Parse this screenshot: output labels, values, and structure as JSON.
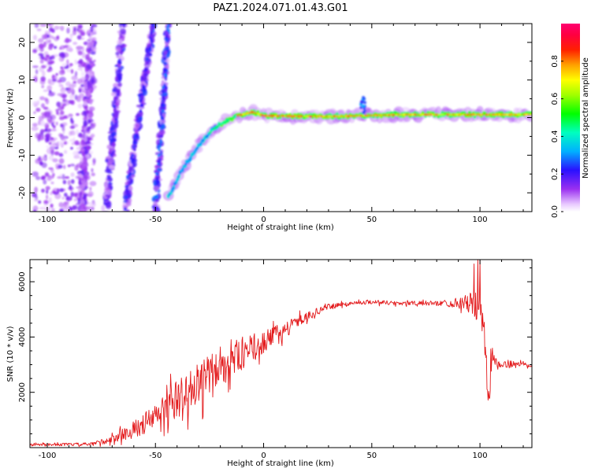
{
  "title": "PAZ1.2024.071.01.43.G01",
  "chart_data": [
    {
      "type": "heatmap",
      "name": "spectrogram",
      "xlabel": "Height of straight line (km)",
      "ylabel": "Frequency (Hz)",
      "xlim": [
        -108,
        124
      ],
      "ylim": [
        -25,
        25
      ],
      "xticks": [
        -100,
        -50,
        0,
        50,
        100
      ],
      "yticks": [
        -20,
        -10,
        0,
        10,
        20
      ],
      "grid": false,
      "colorbar": {
        "label": "Normalized spectral amplitude",
        "range": [
          0.0,
          1.0
        ],
        "ticks": [
          0.0,
          0.2,
          0.4,
          0.6,
          0.8
        ],
        "colormap": "gist_rainbow_r"
      },
      "features": [
        {
          "kind": "main-signal",
          "points": [
            [
              -43,
              -20
            ],
            [
              -38,
              -14
            ],
            [
              -33,
              -10
            ],
            [
              -28,
              -6
            ],
            [
              -23,
              -3
            ],
            [
              -18,
              -1
            ],
            [
              -12,
              0.5
            ],
            [
              -5,
              1.5
            ],
            [
              0,
              0.5
            ],
            [
              10,
              0.4
            ],
            [
              25,
              0.3
            ],
            [
              40,
              0.4
            ],
            [
              50,
              0.6
            ],
            [
              65,
              0.8
            ],
            [
              80,
              0.8
            ],
            [
              95,
              0.8
            ],
            [
              110,
              0.8
            ],
            [
              124,
              0.8
            ]
          ]
        },
        {
          "kind": "spur",
          "x": 46,
          "y": 4
        }
      ]
    },
    {
      "type": "line",
      "name": "snr",
      "xlabel": "Height of straight line (km)",
      "ylabel": "SNR (10 * v/v)",
      "xlim": [
        -108,
        124
      ],
      "ylim": [
        0,
        6800
      ],
      "xticks": [
        -100,
        -50,
        0,
        50,
        100
      ],
      "yticks": [
        2000,
        4000,
        6000
      ],
      "grid": false,
      "color": "#e31a1c",
      "envelope": [
        [
          -108,
          100
        ],
        [
          -80,
          120
        ],
        [
          -70,
          300
        ],
        [
          -60,
          650
        ],
        [
          -50,
          1100
        ],
        [
          -40,
          1700
        ],
        [
          -30,
          2300
        ],
        [
          -20,
          2900
        ],
        [
          -10,
          3400
        ],
        [
          0,
          3800
        ],
        [
          10,
          4300
        ],
        [
          20,
          4750
        ],
        [
          30,
          5100
        ],
        [
          40,
          5220
        ],
        [
          50,
          5280
        ],
        [
          60,
          5230
        ],
        [
          70,
          5220
        ],
        [
          80,
          5220
        ],
        [
          90,
          5240
        ],
        [
          96,
          5220
        ],
        [
          100,
          5000
        ],
        [
          104,
          3200
        ],
        [
          108,
          2950
        ],
        [
          115,
          3050
        ],
        [
          124,
          3000
        ]
      ],
      "noise": [
        [
          -108,
          60
        ],
        [
          -80,
          100
        ],
        [
          -70,
          220
        ],
        [
          -60,
          500
        ],
        [
          -50,
          800
        ],
        [
          -40,
          1200
        ],
        [
          -30,
          1300
        ],
        [
          -20,
          1200
        ],
        [
          -10,
          950
        ],
        [
          0,
          650
        ],
        [
          10,
          420
        ],
        [
          20,
          260
        ],
        [
          30,
          160
        ],
        [
          40,
          120
        ],
        [
          60,
          130
        ],
        [
          80,
          140
        ],
        [
          90,
          300
        ],
        [
          96,
          650
        ],
        [
          100,
          1300
        ],
        [
          104,
          1300
        ],
        [
          108,
          230
        ],
        [
          124,
          150
        ]
      ]
    }
  ]
}
